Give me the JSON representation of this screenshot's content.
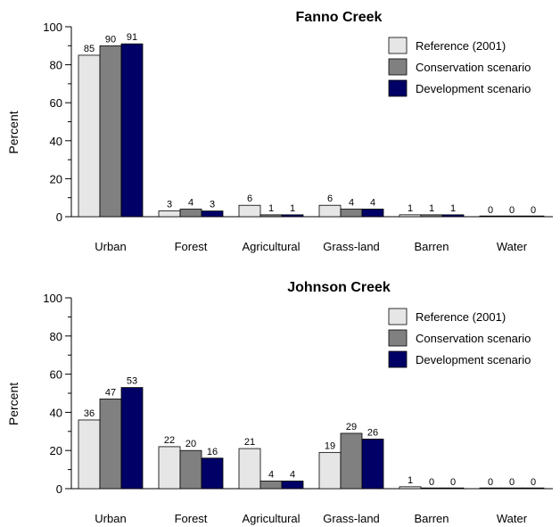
{
  "colors": {
    "reference": "#e6e6e6",
    "conservation": "#808080",
    "development": "#000066"
  },
  "chart_data": [
    {
      "type": "bar",
      "title": "Fanno Creek",
      "xlabel": "",
      "ylabel": "Percent",
      "ylim": [
        0,
        100
      ],
      "yticks": [
        0,
        20,
        40,
        60,
        80,
        100
      ],
      "grid": false,
      "legend_position": "top-right",
      "categories": [
        "Urban",
        "Forest",
        "Agricultural",
        "Grass-land",
        "Barren",
        "Water"
      ],
      "series": [
        {
          "name": "Reference (2001)",
          "color": "#e6e6e6",
          "values": [
            85,
            3,
            6,
            6,
            1,
            0
          ]
        },
        {
          "name": "Conservation scenario",
          "color": "#808080",
          "values": [
            90,
            4,
            1,
            4,
            1,
            0
          ]
        },
        {
          "name": "Development scenario",
          "color": "#000066",
          "values": [
            91,
            3,
            1,
            4,
            1,
            0
          ]
        }
      ]
    },
    {
      "type": "bar",
      "title": "Johnson Creek",
      "xlabel": "",
      "ylabel": "Percent",
      "ylim": [
        0,
        100
      ],
      "yticks": [
        0,
        20,
        40,
        60,
        80,
        100
      ],
      "grid": false,
      "legend_position": "top-right",
      "categories": [
        "Urban",
        "Forest",
        "Agricultural",
        "Grass-land",
        "Barren",
        "Water"
      ],
      "series": [
        {
          "name": "Reference (2001)",
          "color": "#e6e6e6",
          "values": [
            36,
            22,
            21,
            19,
            1,
            0
          ]
        },
        {
          "name": "Conservation scenario",
          "color": "#808080",
          "values": [
            47,
            20,
            4,
            29,
            0,
            0
          ]
        },
        {
          "name": "Development scenario",
          "color": "#000066",
          "values": [
            53,
            16,
            4,
            26,
            0,
            0
          ]
        }
      ]
    }
  ]
}
